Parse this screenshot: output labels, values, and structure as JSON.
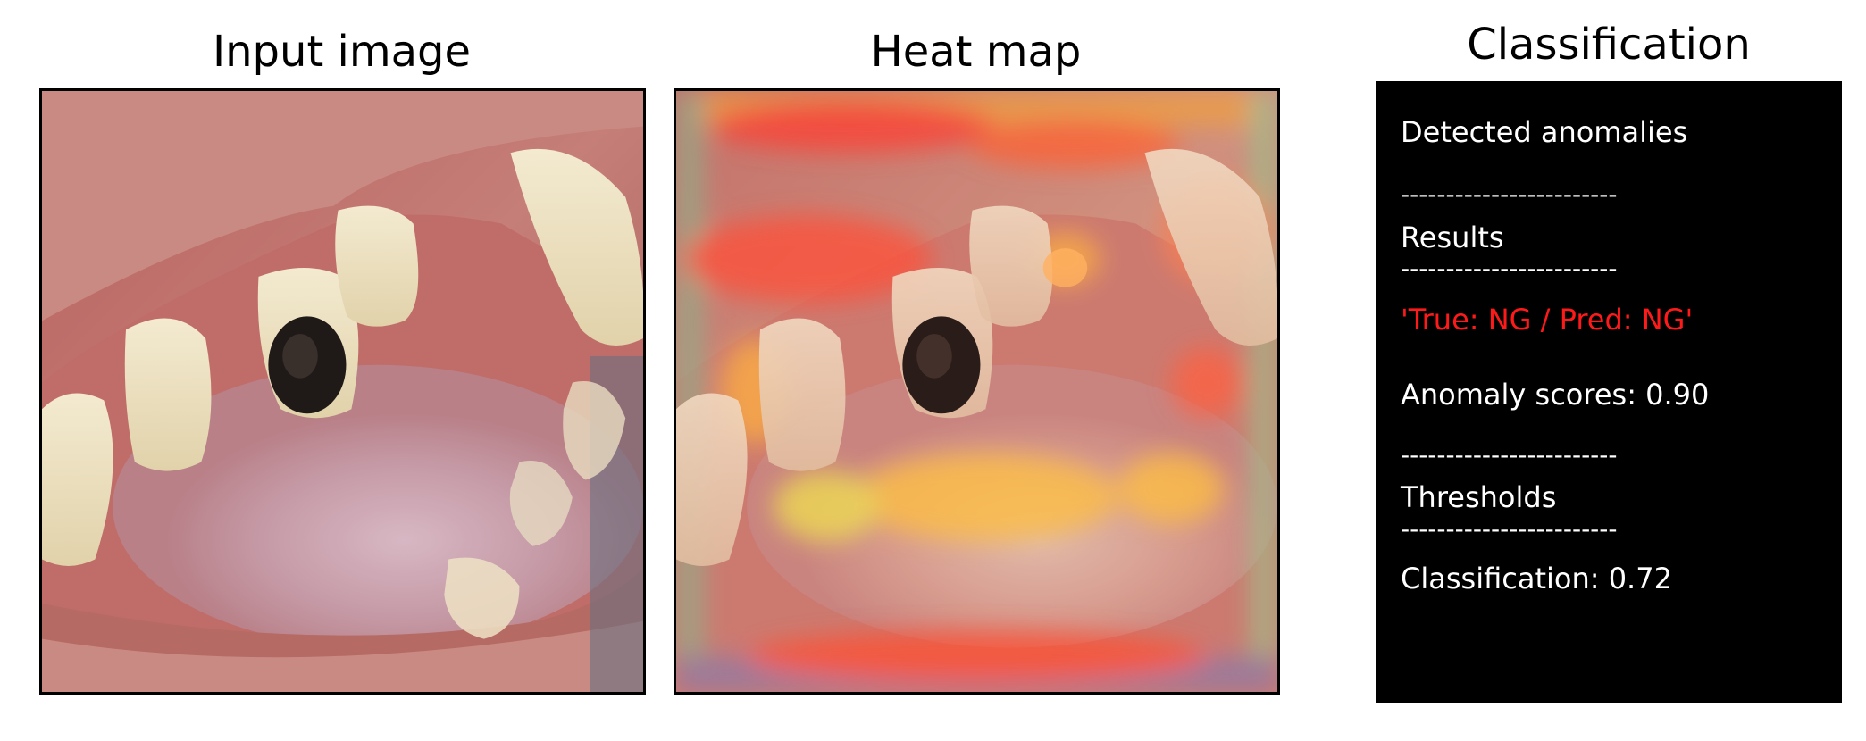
{
  "panels": {
    "input": {
      "title": "Input image"
    },
    "heatmap": {
      "title": "Heat map"
    },
    "classification": {
      "title": "Classification",
      "lines": {
        "detected": "Detected anomalies",
        "sep1": "------------------------",
        "results": "Results",
        "sep2": "------------------------",
        "verdict": "'True: NG / Pred: NG'",
        "score": "Anomaly scores: 0.90",
        "sep3": "------------------------",
        "thresholds": "Thresholds",
        "sep4": "------------------------",
        "class_threshold": "Classification: 0.72"
      },
      "colors": {
        "background": "#000000",
        "text": "#ffffff",
        "verdict": "#ff1a1a"
      }
    }
  }
}
